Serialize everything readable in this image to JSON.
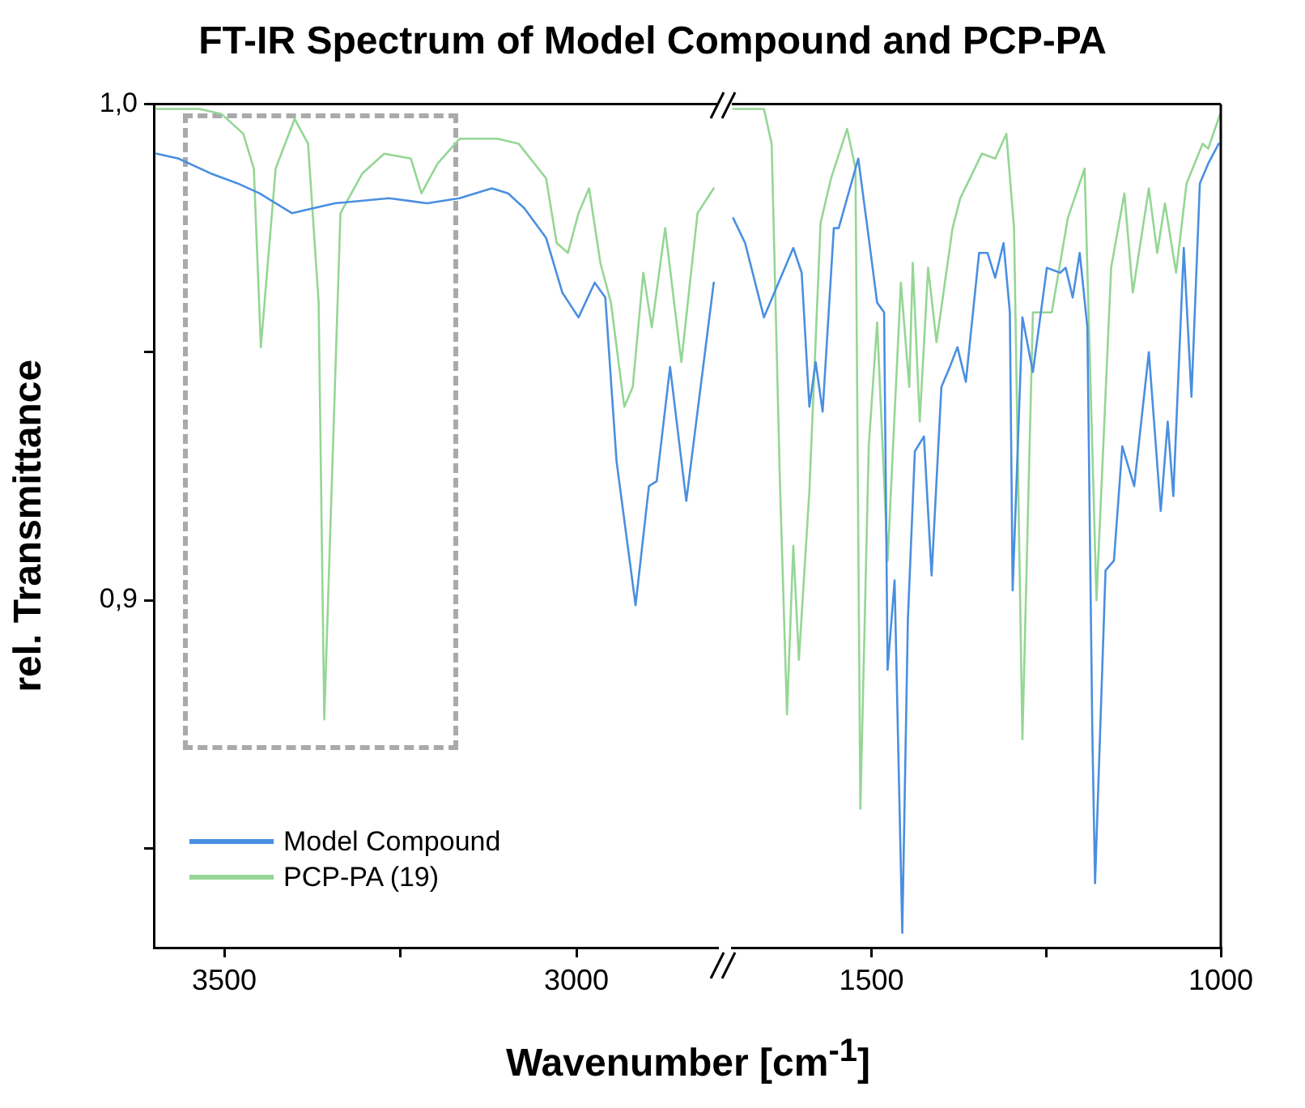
{
  "chart_data": [
    {
      "type": "line",
      "title": "FT-IR Spectrum of Model Compound and PCP-PA",
      "xlabel": "Wavenumber [cm$^{-1}$]",
      "ylabel": "rel. Transmittance",
      "xlim": [
        3600,
        2800
      ],
      "xticks": [
        3500,
        {
          "value": 3250,
          "label": null
        },
        3000
      ],
      "ylim": [
        0.83,
        1.0
      ],
      "yticks": [
        {
          "value": 1.0,
          "label": "1,0"
        },
        {
          "value": 0.95,
          "label": null
        },
        {
          "value": 0.9,
          "label": "0,9"
        },
        {
          "value": 0.85,
          "label": null
        }
      ],
      "legend": "bottom left",
      "grid": false,
      "marker": "none",
      "line_style": "solid",
      "series": [
        {
          "name": "Model Compound",
          "color": "#4a8fe0",
          "x": [
            3596,
            3565,
            3519,
            3481,
            3450,
            3404,
            3343,
            3266,
            3212,
            3166,
            3120,
            3097,
            3074,
            3043,
            3020,
            2997,
            2974,
            2959,
            2943,
            2916,
            2897,
            2886,
            2867,
            2844,
            2805
          ],
          "values": [
            0.99,
            0.989,
            0.986,
            0.984,
            0.982,
            0.978,
            0.98,
            0.981,
            0.98,
            0.981,
            0.983,
            0.982,
            0.979,
            0.973,
            0.962,
            0.957,
            0.964,
            0.961,
            0.928,
            0.899,
            0.923,
            0.924,
            0.947,
            0.92,
            0.964
          ]
        },
        {
          "name": "PCP-PA (19)",
          "color": "#95d695",
          "x": [
            3596,
            3535,
            3504,
            3473,
            3458,
            3448,
            3427,
            3400,
            3381,
            3366,
            3358,
            3335,
            3304,
            3273,
            3235,
            3220,
            3197,
            3166,
            3112,
            3082,
            3043,
            3028,
            3012,
            2997,
            2982,
            2966,
            2951,
            2932,
            2920,
            2905,
            2893,
            2874,
            2851,
            2828,
            2805
          ],
          "values": [
            0.999,
            0.999,
            0.998,
            0.994,
            0.987,
            0.951,
            0.987,
            0.997,
            0.992,
            0.96,
            0.876,
            0.978,
            0.986,
            0.99,
            0.989,
            0.982,
            0.988,
            0.993,
            0.993,
            0.992,
            0.985,
            0.972,
            0.97,
            0.978,
            0.983,
            0.968,
            0.96,
            0.939,
            0.943,
            0.966,
            0.955,
            0.975,
            0.948,
            0.978,
            0.983
          ]
        }
      ]
    },
    {
      "type": "line",
      "xlim": [
        1700,
        1000
      ],
      "xticks": [
        1500,
        {
          "value": 1250,
          "label": null
        },
        1000
      ],
      "ylim": [
        0.83,
        1.0
      ],
      "tick_labels": "x",
      "grid": false,
      "marker": "none",
      "line_style": "solid",
      "series": [
        {
          "color": "#4a8fe0",
          "x": [
            1698,
            1681,
            1654,
            1612,
            1600,
            1589,
            1580,
            1570,
            1554,
            1547,
            1519,
            1504,
            1492,
            1482,
            1477,
            1467,
            1456,
            1448,
            1438,
            1425,
            1414,
            1400,
            1388,
            1377,
            1365,
            1346,
            1334,
            1323,
            1311,
            1302,
            1298,
            1284,
            1269,
            1249,
            1230,
            1222,
            1212,
            1202,
            1191,
            1184,
            1180,
            1165,
            1153,
            1141,
            1124,
            1103,
            1086,
            1076,
            1068,
            1053,
            1042,
            1030,
            1018,
            1003
          ],
          "values": [
            0.977,
            0.972,
            0.957,
            0.971,
            0.966,
            0.939,
            0.948,
            0.938,
            0.975,
            0.975,
            0.989,
            0.973,
            0.96,
            0.958,
            0.886,
            0.904,
            0.833,
            0.896,
            0.93,
            0.933,
            0.905,
            0.943,
            0.947,
            0.951,
            0.944,
            0.97,
            0.97,
            0.965,
            0.972,
            0.958,
            0.902,
            0.957,
            0.946,
            0.967,
            0.966,
            0.967,
            0.961,
            0.97,
            0.955,
            0.874,
            0.843,
            0.906,
            0.908,
            0.931,
            0.923,
            0.95,
            0.918,
            0.936,
            0.921,
            0.971,
            0.941,
            0.984,
            0.988,
            0.992
          ]
        },
        {
          "color": "#95d695",
          "x": [
            1698,
            1654,
            1643,
            1631,
            1621,
            1612,
            1604,
            1589,
            1573,
            1558,
            1535,
            1523,
            1516,
            1504,
            1492,
            1477,
            1458,
            1446,
            1441,
            1431,
            1419,
            1407,
            1384,
            1373,
            1342,
            1323,
            1307,
            1296,
            1284,
            1269,
            1257,
            1242,
            1219,
            1195,
            1178,
            1157,
            1138,
            1126,
            1103,
            1091,
            1080,
            1064,
            1049,
            1026,
            1018,
            1001
          ],
          "values": [
            0.999,
            0.999,
            0.992,
            0.923,
            0.877,
            0.911,
            0.888,
            0.922,
            0.976,
            0.985,
            0.995,
            0.987,
            0.858,
            0.931,
            0.956,
            0.908,
            0.964,
            0.943,
            0.968,
            0.936,
            0.967,
            0.952,
            0.975,
            0.981,
            0.99,
            0.989,
            0.994,
            0.975,
            0.872,
            0.958,
            0.958,
            0.958,
            0.977,
            0.987,
            0.9,
            0.967,
            0.982,
            0.962,
            0.983,
            0.97,
            0.98,
            0.966,
            0.984,
            0.992,
            0.991,
            0.998
          ]
        }
      ]
    }
  ]
}
